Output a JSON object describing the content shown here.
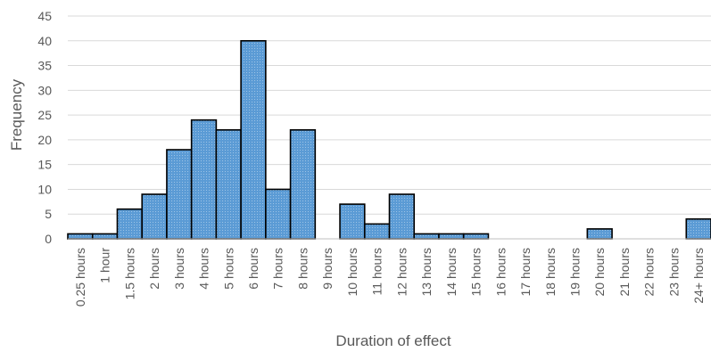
{
  "chart_data": {
    "type": "bar",
    "xlabel": "Duration of effect",
    "ylabel": "Frequency",
    "ylim": [
      0,
      45
    ],
    "yticks": [
      0,
      5,
      10,
      15,
      20,
      25,
      30,
      35,
      40,
      45
    ],
    "grid": true,
    "bar_color": "#5b9bd5",
    "categories": [
      "0.25 hours",
      "1 hour",
      "1.5 hours",
      "2 hours",
      "3 hours",
      "4 hours",
      "5 hours",
      "6 hours",
      "7 hours",
      "8 hours",
      "9 hours",
      "10 hours",
      "11 hours",
      "12 hours",
      "13 hours",
      "14 hours",
      "15 hours",
      "16 hours",
      "17 hours",
      "18 hours",
      "19 hours",
      "20 hours",
      "21 hours",
      "22 hours",
      "23 hours",
      "24+ hours"
    ],
    "values": [
      1,
      1,
      6,
      9,
      18,
      24,
      22,
      40,
      10,
      22,
      0,
      7,
      3,
      9,
      1,
      1,
      1,
      0,
      0,
      0,
      0,
      2,
      0,
      0,
      0,
      4
    ]
  }
}
